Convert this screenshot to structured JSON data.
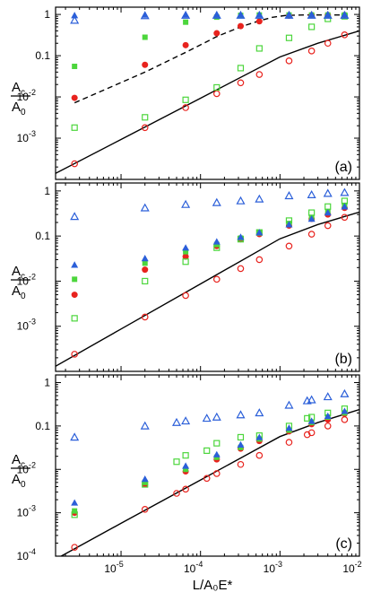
{
  "figure": {
    "xlabel": "L/A₀E*",
    "ylabel_num": "A",
    "ylabel_num_sub": "c",
    "ylabel_den": "A",
    "ylabel_den_sub": "0"
  },
  "colors": {
    "red": "#e8231e",
    "green": "#4cd63c",
    "blue": "#2b5fd9"
  },
  "chart_data": [
    {
      "type": "scatter",
      "panel_label": "(a)",
      "xscale": "log",
      "yscale": "log",
      "xlim": [
        1.5e-06,
        0.01
      ],
      "ylim": [
        0.0001,
        1.5
      ],
      "y_ticks": [
        {
          "v": 0.001,
          "label": "10",
          "exp": "-3"
        },
        {
          "v": 0.01,
          "label": "10",
          "exp": "-2"
        },
        {
          "v": 0.1,
          "label": "0.1"
        },
        {
          "v": 1,
          "label": "1"
        }
      ],
      "x_ticks": [],
      "series": [
        {
          "marker": "open-circle",
          "color": "red",
          "x": [
            2.6e-06,
            2e-05,
            6.5e-05,
            0.00016,
            0.00032,
            0.00055,
            0.0013,
            0.0025,
            0.004,
            0.0065
          ],
          "y": [
            0.00024,
            0.0018,
            0.0055,
            0.012,
            0.022,
            0.035,
            0.075,
            0.13,
            0.2,
            0.32
          ]
        },
        {
          "marker": "filled-circle",
          "color": "red",
          "x": [
            2.6e-06,
            2e-05,
            6.5e-05,
            0.00016,
            0.00032,
            0.00055,
            0.0013,
            0.0025,
            0.004,
            0.0065
          ],
          "y": [
            0.0095,
            0.06,
            0.18,
            0.35,
            0.52,
            0.68,
            0.93,
            0.96,
            0.97,
            0.97
          ]
        },
        {
          "marker": "open-square",
          "color": "green",
          "x": [
            2.6e-06,
            2e-05,
            6.5e-05,
            0.00016,
            0.00032,
            0.00055,
            0.0013,
            0.0025,
            0.004,
            0.0065
          ],
          "y": [
            0.0018,
            0.0032,
            0.0085,
            0.017,
            0.05,
            0.15,
            0.27,
            0.5,
            0.78,
            0.9
          ]
        },
        {
          "marker": "filled-square",
          "color": "green",
          "x": [
            2.6e-06,
            2e-05,
            6.5e-05,
            0.00016,
            0.00032,
            0.00055,
            0.0013,
            0.0025,
            0.004,
            0.0065
          ],
          "y": [
            0.055,
            0.28,
            0.65,
            0.86,
            0.95,
            0.97,
            0.97,
            0.97,
            0.97,
            0.97
          ]
        },
        {
          "marker": "open-triangle",
          "color": "blue",
          "x": [
            2.6e-06,
            2e-05,
            6.5e-05,
            0.00016,
            0.00032,
            0.00055,
            0.0013,
            0.0025,
            0.004,
            0.0065
          ],
          "y": [
            0.72,
            0.93,
            0.95,
            0.95,
            0.95,
            0.95,
            0.95,
            0.95,
            0.95,
            0.95
          ]
        },
        {
          "marker": "filled-triangle",
          "color": "blue",
          "x": [
            2.6e-06,
            2e-05,
            6.5e-05,
            0.00016,
            0.00032,
            0.00055,
            0.0013,
            0.0025,
            0.004,
            0.0065
          ],
          "y": [
            0.95,
            0.98,
            0.98,
            0.98,
            0.98,
            0.98,
            0.98,
            0.98,
            0.98,
            0.98
          ]
        }
      ],
      "lines": [
        {
          "style": "solid",
          "x": [
            1.5e-06,
            1e-05,
            0.0001,
            0.001,
            0.003,
            0.01
          ],
          "y": [
            0.00014,
            0.00093,
            0.0093,
            0.093,
            0.2,
            0.4
          ]
        },
        {
          "style": "dashed",
          "x": [
            2.6e-06,
            2e-05,
            6.5e-05,
            0.00016,
            0.00032,
            0.00055,
            0.0008,
            0.0012,
            0.002,
            0.0065
          ],
          "y": [
            0.0072,
            0.04,
            0.12,
            0.29,
            0.5,
            0.7,
            0.85,
            0.95,
            0.97,
            0.97
          ]
        }
      ]
    },
    {
      "type": "scatter",
      "panel_label": "(b)",
      "xscale": "log",
      "yscale": "log",
      "xlim": [
        1.5e-06,
        0.01
      ],
      "ylim": [
        0.0001,
        1.5
      ],
      "y_ticks": [
        {
          "v": 0.001,
          "label": "10",
          "exp": "-3"
        },
        {
          "v": 0.01,
          "label": "10",
          "exp": "-2"
        },
        {
          "v": 0.1,
          "label": "0.1"
        },
        {
          "v": 1,
          "label": "1"
        }
      ],
      "x_ticks": [],
      "series": [
        {
          "marker": "open-circle",
          "color": "red",
          "x": [
            2.6e-06,
            2e-05,
            6.5e-05,
            0.00016,
            0.00032,
            0.00055,
            0.0013,
            0.0025,
            0.004,
            0.0065
          ],
          "y": [
            0.00024,
            0.0016,
            0.0048,
            0.011,
            0.019,
            0.03,
            0.06,
            0.11,
            0.17,
            0.26
          ]
        },
        {
          "marker": "filled-circle",
          "color": "red",
          "x": [
            2.6e-06,
            2e-05,
            6.5e-05,
            0.00016,
            0.00032,
            0.00055,
            0.0013,
            0.0025,
            0.004,
            0.0065
          ],
          "y": [
            0.005,
            0.018,
            0.035,
            0.06,
            0.085,
            0.11,
            0.17,
            0.24,
            0.3,
            0.42
          ]
        },
        {
          "marker": "open-square",
          "color": "green",
          "x": [
            2.6e-06,
            2e-05,
            6.5e-05,
            0.00016,
            0.00032,
            0.00055,
            0.0013,
            0.0025,
            0.004,
            0.0065
          ],
          "y": [
            0.0015,
            0.01,
            0.027,
            0.055,
            0.085,
            0.12,
            0.22,
            0.33,
            0.45,
            0.6
          ]
        },
        {
          "marker": "filled-square",
          "color": "green",
          "x": [
            2.6e-06,
            2e-05,
            6.5e-05,
            0.00016,
            0.00032,
            0.00055,
            0.0013,
            0.0025,
            0.004,
            0.0065
          ],
          "y": [
            0.011,
            0.025,
            0.045,
            0.065,
            0.09,
            0.12,
            0.19,
            0.26,
            0.35,
            0.48
          ]
        },
        {
          "marker": "open-triangle",
          "color": "blue",
          "x": [
            2.6e-06,
            2e-05,
            6.5e-05,
            0.00016,
            0.00032,
            0.00055,
            0.0013,
            0.0025,
            0.004,
            0.0065
          ],
          "y": [
            0.27,
            0.42,
            0.5,
            0.55,
            0.6,
            0.66,
            0.78,
            0.82,
            0.88,
            0.92
          ]
        },
        {
          "marker": "filled-triangle",
          "color": "blue",
          "x": [
            2.6e-06,
            2e-05,
            6.5e-05,
            0.00016,
            0.00032,
            0.00055,
            0.0013,
            0.0025,
            0.004,
            0.0065
          ],
          "y": [
            0.023,
            0.032,
            0.055,
            0.075,
            0.095,
            0.12,
            0.18,
            0.24,
            0.33,
            0.45
          ]
        }
      ],
      "lines": [
        {
          "style": "solid",
          "x": [
            1.5e-06,
            1e-05,
            0.0001,
            0.001,
            0.003,
            0.01
          ],
          "y": [
            0.00013,
            0.00087,
            0.0087,
            0.087,
            0.18,
            0.34
          ]
        }
      ]
    },
    {
      "type": "scatter",
      "panel_label": "(c)",
      "xscale": "log",
      "yscale": "log",
      "xlim": [
        1.5e-06,
        0.01
      ],
      "ylim": [
        0.0001,
        1.5
      ],
      "y_ticks": [
        {
          "v": 0.0001,
          "label": "10",
          "exp": "-4"
        },
        {
          "v": 0.001,
          "label": "10",
          "exp": "-3"
        },
        {
          "v": 0.01,
          "label": "10",
          "exp": "-2"
        },
        {
          "v": 0.1,
          "label": "0.1"
        },
        {
          "v": 1,
          "label": "1"
        }
      ],
      "x_ticks": [
        {
          "v": 1e-05,
          "label": "10",
          "exp": "-5"
        },
        {
          "v": 0.0001,
          "label": "10",
          "exp": "-4"
        },
        {
          "v": 0.001,
          "label": "10",
          "exp": "-3"
        },
        {
          "v": 0.01,
          "label": "10",
          "exp": "-2"
        }
      ],
      "series": [
        {
          "marker": "open-circle",
          "color": "red",
          "x": [
            2.6e-06,
            2e-05,
            5e-05,
            6.5e-05,
            0.00012,
            0.00016,
            0.00032,
            0.00055,
            0.0013,
            0.0022,
            0.0025,
            0.004,
            0.0065
          ],
          "y": [
            0.00016,
            0.0012,
            0.0028,
            0.0035,
            0.0062,
            0.008,
            0.013,
            0.021,
            0.042,
            0.063,
            0.07,
            0.1,
            0.14
          ]
        },
        {
          "marker": "filled-circle",
          "color": "red",
          "x": [
            2.6e-06,
            2e-05,
            6.5e-05,
            0.00016,
            0.00032,
            0.00055,
            0.0013,
            0.0025,
            0.004,
            0.0065
          ],
          "y": [
            0.001,
            0.0045,
            0.009,
            0.017,
            0.03,
            0.045,
            0.075,
            0.11,
            0.14,
            0.19
          ]
        },
        {
          "marker": "open-square",
          "color": "green",
          "x": [
            2.6e-06,
            2e-05,
            5e-05,
            6.5e-05,
            0.00012,
            0.00016,
            0.00032,
            0.00055,
            0.0013,
            0.0022,
            0.0025,
            0.004,
            0.0065
          ],
          "y": [
            0.0009,
            0.0045,
            0.015,
            0.021,
            0.027,
            0.04,
            0.055,
            0.06,
            0.1,
            0.15,
            0.16,
            0.2,
            0.25
          ]
        },
        {
          "marker": "filled-square",
          "color": "green",
          "x": [
            2.6e-06,
            2e-05,
            6.5e-05,
            0.00016,
            0.00032,
            0.00055,
            0.0013,
            0.0025,
            0.004,
            0.0065
          ],
          "y": [
            0.0011,
            0.005,
            0.01,
            0.019,
            0.032,
            0.05,
            0.08,
            0.12,
            0.16,
            0.2
          ]
        },
        {
          "marker": "open-triangle",
          "color": "blue",
          "x": [
            2.6e-06,
            2e-05,
            5e-05,
            6.5e-05,
            0.00012,
            0.00016,
            0.00032,
            0.00055,
            0.0013,
            0.0022,
            0.0025,
            0.004,
            0.0065
          ],
          "y": [
            0.055,
            0.1,
            0.12,
            0.13,
            0.15,
            0.16,
            0.18,
            0.2,
            0.3,
            0.38,
            0.4,
            0.47,
            0.55
          ]
        },
        {
          "marker": "filled-triangle",
          "color": "blue",
          "x": [
            2.6e-06,
            2e-05,
            6.5e-05,
            0.00016,
            0.00032,
            0.00055,
            0.0013,
            0.0025,
            0.004,
            0.0065
          ],
          "y": [
            0.0017,
            0.006,
            0.012,
            0.022,
            0.037,
            0.055,
            0.09,
            0.13,
            0.17,
            0.22
          ]
        }
      ],
      "lines": [
        {
          "style": "solid",
          "x": [
            1.5e-06,
            1e-05,
            0.0001,
            0.001,
            0.003,
            0.01
          ],
          "y": [
            8.5e-05,
            0.00057,
            0.0057,
            0.057,
            0.12,
            0.24
          ]
        }
      ]
    }
  ]
}
